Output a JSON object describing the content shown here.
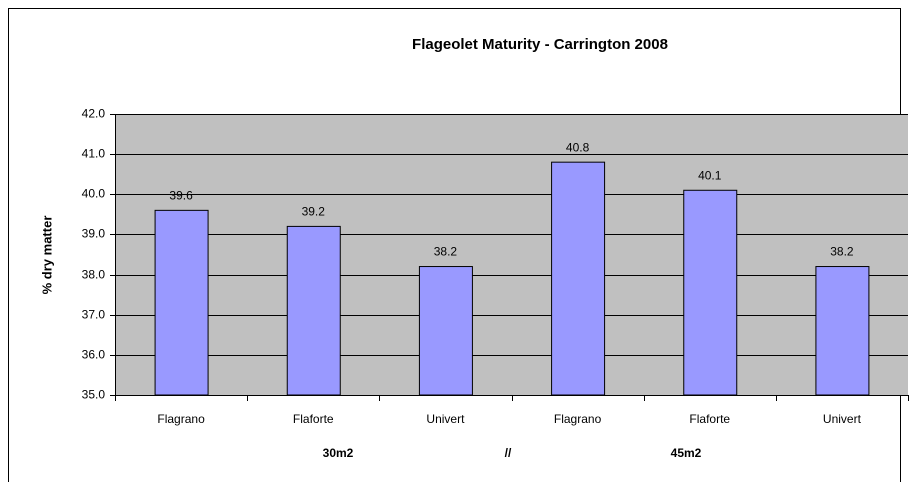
{
  "chart_data": {
    "type": "bar",
    "title": "Flageolet Maturity  - Carrington 2008",
    "ylabel": "% dry matter",
    "categories": [
      "Flagrano",
      "Flaforte",
      "Univert",
      "Flagrano",
      "Flaforte",
      "Univert"
    ],
    "values": [
      39.6,
      39.2,
      38.2,
      40.8,
      40.1,
      38.2
    ],
    "color": "#9999ff",
    "ylim": [
      35,
      42
    ],
    "yticks": [
      {
        "value": 35,
        "label": "35.0"
      },
      {
        "value": 36,
        "label": "36.0"
      },
      {
        "value": 37,
        "label": "37.0"
      },
      {
        "value": 38,
        "label": "38.0"
      },
      {
        "value": 39,
        "label": "39.0"
      },
      {
        "value": 40,
        "label": "40.0"
      },
      {
        "value": 41,
        "label": "41.0"
      },
      {
        "value": 42,
        "label": "42.0"
      }
    ],
    "grid": true,
    "annotations": [
      "30m2",
      "//",
      "45m2"
    ]
  }
}
